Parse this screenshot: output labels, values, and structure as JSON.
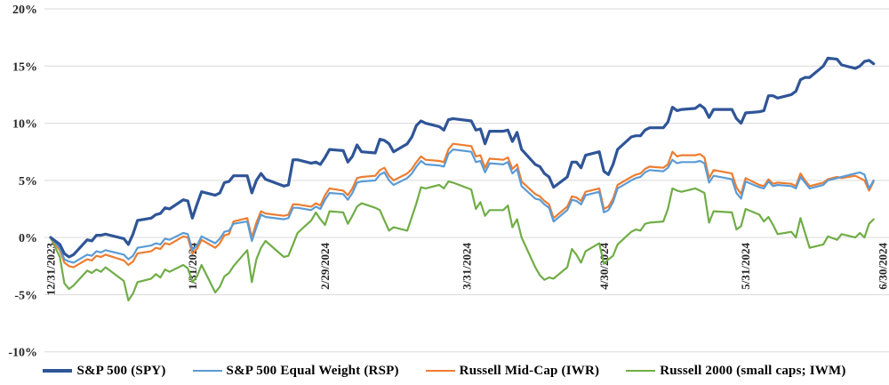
{
  "chart_data": {
    "type": "line",
    "title": "",
    "x_unit": "date",
    "xlabel": "",
    "ylabel": "",
    "ylim": [
      -10,
      20
    ],
    "grid": true,
    "grid_color": "#d9d9d9",
    "legend_position": "bottom",
    "y_ticks": [
      {
        "label": "20%",
        "value": 20
      },
      {
        "label": "15%",
        "value": 15
      },
      {
        "label": "10%",
        "value": 10
      },
      {
        "label": "5%",
        "value": 5
      },
      {
        "label": "0%",
        "value": 0
      },
      {
        "label": "-5%",
        "value": -5
      },
      {
        "label": "-10%",
        "value": -10
      }
    ],
    "x_ticks": [
      {
        "label": "12/31/2023",
        "day": 0
      },
      {
        "label": "1/31/2024",
        "day": 31
      },
      {
        "label": "2/29/2024",
        "day": 60
      },
      {
        "label": "3/31/2024",
        "day": 91
      },
      {
        "label": "4/30/2024",
        "day": 121
      },
      {
        "label": "5/31/2024",
        "day": 152
      },
      {
        "label": "6/30/2024",
        "day": 182
      }
    ],
    "dates": [
      "2023-12-31",
      "2024-01-02",
      "2024-01-03",
      "2024-01-04",
      "2024-01-05",
      "2024-01-08",
      "2024-01-09",
      "2024-01-10",
      "2024-01-11",
      "2024-01-12",
      "2024-01-16",
      "2024-01-17",
      "2024-01-18",
      "2024-01-19",
      "2024-01-22",
      "2024-01-23",
      "2024-01-24",
      "2024-01-25",
      "2024-01-26",
      "2024-01-29",
      "2024-01-30",
      "2024-01-31",
      "2024-02-01",
      "2024-02-02",
      "2024-02-05",
      "2024-02-06",
      "2024-02-07",
      "2024-02-08",
      "2024-02-09",
      "2024-02-12",
      "2024-02-13",
      "2024-02-14",
      "2024-02-15",
      "2024-02-16",
      "2024-02-20",
      "2024-02-21",
      "2024-02-22",
      "2024-02-23",
      "2024-02-26",
      "2024-02-27",
      "2024-02-28",
      "2024-02-29",
      "2024-03-01",
      "2024-03-04",
      "2024-03-05",
      "2024-03-06",
      "2024-03-07",
      "2024-03-08",
      "2024-03-11",
      "2024-03-12",
      "2024-03-13",
      "2024-03-14",
      "2024-03-15",
      "2024-03-18",
      "2024-03-19",
      "2024-03-20",
      "2024-03-21",
      "2024-03-22",
      "2024-03-25",
      "2024-03-26",
      "2024-03-27",
      "2024-03-28",
      "2024-04-01",
      "2024-04-02",
      "2024-04-03",
      "2024-04-04",
      "2024-04-05",
      "2024-04-08",
      "2024-04-09",
      "2024-04-10",
      "2024-04-11",
      "2024-04-12",
      "2024-04-15",
      "2024-04-16",
      "2024-04-17",
      "2024-04-18",
      "2024-04-19",
      "2024-04-22",
      "2024-04-23",
      "2024-04-24",
      "2024-04-25",
      "2024-04-26",
      "2024-04-29",
      "2024-04-30",
      "2024-05-01",
      "2024-05-02",
      "2024-05-03",
      "2024-05-06",
      "2024-05-07",
      "2024-05-08",
      "2024-05-09",
      "2024-05-10",
      "2024-05-13",
      "2024-05-14",
      "2024-05-15",
      "2024-05-16",
      "2024-05-17",
      "2024-05-20",
      "2024-05-21",
      "2024-05-22",
      "2024-05-23",
      "2024-05-24",
      "2024-05-28",
      "2024-05-29",
      "2024-05-30",
      "2024-05-31",
      "2024-06-03",
      "2024-06-04",
      "2024-06-05",
      "2024-06-06",
      "2024-06-07",
      "2024-06-10",
      "2024-06-11",
      "2024-06-12",
      "2024-06-13",
      "2024-06-14",
      "2024-06-17",
      "2024-06-18",
      "2024-06-20",
      "2024-06-21",
      "2024-06-24",
      "2024-06-25",
      "2024-06-26",
      "2024-06-27",
      "2024-06-28"
    ],
    "series": [
      {
        "name": "S&P 500 (SPY)",
        "color": "#2f5597",
        "line_width": 3.2,
        "values": [
          0.0,
          -0.6,
          -1.4,
          -1.7,
          -1.5,
          -0.2,
          -0.3,
          0.2,
          0.2,
          0.3,
          -0.1,
          -0.6,
          0.3,
          1.5,
          1.7,
          2.0,
          2.1,
          2.6,
          2.5,
          3.3,
          3.2,
          1.7,
          2.9,
          4.0,
          3.7,
          3.9,
          4.8,
          4.9,
          5.4,
          5.4,
          3.9,
          5.0,
          5.6,
          5.1,
          4.5,
          4.6,
          6.8,
          6.8,
          6.5,
          6.6,
          6.4,
          7.0,
          7.7,
          7.6,
          6.6,
          7.1,
          8.1,
          7.5,
          7.4,
          8.6,
          8.5,
          8.2,
          7.5,
          8.2,
          8.8,
          9.8,
          10.2,
          10.0,
          9.7,
          9.4,
          10.3,
          10.4,
          10.2,
          9.4,
          9.5,
          8.2,
          9.3,
          9.3,
          9.4,
          8.4,
          9.2,
          7.7,
          6.4,
          6.2,
          5.6,
          5.3,
          4.4,
          5.3,
          6.6,
          6.6,
          6.1,
          7.2,
          7.5,
          5.8,
          5.5,
          6.4,
          7.7,
          8.8,
          8.9,
          8.9,
          9.4,
          9.6,
          9.6,
          10.1,
          11.4,
          11.1,
          11.2,
          11.3,
          11.6,
          11.3,
          10.5,
          11.2,
          11.2,
          10.4,
          10.0,
          10.9,
          11.0,
          11.1,
          12.4,
          12.4,
          12.2,
          12.5,
          12.8,
          13.8,
          14.0,
          14.0,
          15.0,
          15.7,
          15.6,
          15.1,
          14.8,
          15.0,
          15.4,
          15.5,
          15.2
        ]
      },
      {
        "name": "S&P 500 Equal Weight (RSP)",
        "color": "#5b9bd5",
        "line_width": 2.2,
        "values": [
          0.0,
          -0.9,
          -1.9,
          -2.1,
          -2.2,
          -1.5,
          -1.6,
          -1.2,
          -1.3,
          -1.1,
          -1.5,
          -1.9,
          -1.6,
          -0.9,
          -0.7,
          -0.5,
          -0.6,
          -0.1,
          -0.2,
          0.4,
          0.3,
          -1.1,
          -0.7,
          0.1,
          -0.5,
          -0.1,
          0.5,
          0.6,
          1.2,
          1.4,
          -0.3,
          0.9,
          2.0,
          1.8,
          1.6,
          1.7,
          2.6,
          2.6,
          2.4,
          2.7,
          2.5,
          3.3,
          3.9,
          3.8,
          3.3,
          3.9,
          4.8,
          4.9,
          5.0,
          5.5,
          5.7,
          5.0,
          4.6,
          5.2,
          5.6,
          6.2,
          6.7,
          6.4,
          6.3,
          6.2,
          7.3,
          7.7,
          7.5,
          6.6,
          6.7,
          5.7,
          6.5,
          6.4,
          6.6,
          5.6,
          6.0,
          4.5,
          3.4,
          3.3,
          2.9,
          2.6,
          1.4,
          2.4,
          3.3,
          3.2,
          2.9,
          3.7,
          4.0,
          2.2,
          2.4,
          3.1,
          4.3,
          5.0,
          5.2,
          5.3,
          5.7,
          5.9,
          5.8,
          6.1,
          6.8,
          6.5,
          6.6,
          6.6,
          6.7,
          6.5,
          4.8,
          5.4,
          5.1,
          3.9,
          3.4,
          4.9,
          4.4,
          4.3,
          4.9,
          4.5,
          4.6,
          4.5,
          4.3,
          5.3,
          4.8,
          4.3,
          4.6,
          5.0,
          5.2,
          5.3,
          5.6,
          5.7,
          5.5,
          4.3,
          5.0
        ]
      },
      {
        "name": "Russell Mid-Cap (IWR)",
        "color": "#ed7d31",
        "line_width": 2.2,
        "values": [
          0.0,
          -1.1,
          -2.2,
          -2.5,
          -2.6,
          -1.9,
          -2.0,
          -1.6,
          -1.7,
          -1.5,
          -2.0,
          -2.4,
          -2.1,
          -1.4,
          -1.2,
          -0.9,
          -1.0,
          -0.5,
          -0.6,
          0.1,
          0.0,
          -1.4,
          -1.0,
          -0.2,
          -0.9,
          -0.5,
          0.2,
          0.3,
          1.4,
          1.7,
          0.0,
          1.3,
          2.3,
          2.1,
          1.9,
          2.0,
          2.9,
          2.9,
          2.7,
          3.0,
          2.8,
          3.7,
          4.3,
          4.1,
          3.7,
          4.3,
          5.2,
          5.3,
          5.4,
          5.9,
          6.1,
          5.4,
          5.0,
          5.6,
          6.0,
          6.6,
          7.1,
          6.8,
          6.7,
          6.6,
          7.7,
          8.2,
          8.0,
          7.1,
          7.2,
          6.1,
          6.9,
          6.8,
          7.0,
          6.0,
          6.4,
          4.9,
          3.8,
          3.6,
          3.2,
          2.9,
          1.7,
          2.7,
          3.6,
          3.5,
          3.2,
          4.0,
          4.3,
          2.5,
          2.7,
          3.4,
          4.6,
          5.3,
          5.5,
          5.6,
          6.0,
          6.2,
          6.1,
          6.4,
          7.5,
          7.1,
          7.2,
          7.2,
          7.3,
          7.0,
          5.2,
          5.9,
          5.6,
          4.4,
          3.8,
          5.2,
          4.6,
          4.5,
          5.1,
          4.7,
          4.8,
          4.7,
          4.5,
          5.6,
          5.0,
          4.5,
          4.8,
          5.1,
          5.3,
          5.2,
          5.4,
          5.2,
          5.0,
          4.1,
          4.9
        ]
      },
      {
        "name": "Russell 2000 (small caps; IWM)",
        "color": "#70ad47",
        "line_width": 2.2,
        "values": [
          0.0,
          -1.7,
          -4.0,
          -4.5,
          -4.2,
          -2.9,
          -3.1,
          -2.8,
          -3.0,
          -2.6,
          -3.8,
          -5.5,
          -4.9,
          -3.9,
          -3.6,
          -3.2,
          -3.5,
          -2.8,
          -3.0,
          -2.4,
          -2.7,
          -3.9,
          -3.4,
          -2.4,
          -4.8,
          -4.3,
          -3.4,
          -3.1,
          -2.5,
          -1.1,
          -3.9,
          -1.9,
          -0.9,
          -0.3,
          -1.7,
          -1.6,
          -0.6,
          0.4,
          1.5,
          2.2,
          1.6,
          1.1,
          2.3,
          2.2,
          1.2,
          1.9,
          2.7,
          3.0,
          2.6,
          2.4,
          1.5,
          0.6,
          0.9,
          0.6,
          1.8,
          3.0,
          4.4,
          4.3,
          4.6,
          4.3,
          4.9,
          4.8,
          4.2,
          2.5,
          3.1,
          1.9,
          2.4,
          2.4,
          2.8,
          0.9,
          1.6,
          0.0,
          -2.6,
          -3.3,
          -3.7,
          -3.5,
          -3.6,
          -2.6,
          -1.0,
          -1.5,
          -2.2,
          -1.2,
          -0.5,
          -2.3,
          -1.9,
          -1.6,
          -0.6,
          0.5,
          0.7,
          0.6,
          1.2,
          1.3,
          1.4,
          2.5,
          4.3,
          4.1,
          4.0,
          4.3,
          4.1,
          3.9,
          1.3,
          2.3,
          2.2,
          0.7,
          1.0,
          2.5,
          2.0,
          1.4,
          1.8,
          1.1,
          0.3,
          0.5,
          0.0,
          1.7,
          0.4,
          -0.9,
          -0.6,
          0.1,
          -0.2,
          0.3,
          0.0,
          0.4,
          0.0,
          1.2,
          1.6
        ]
      }
    ]
  }
}
